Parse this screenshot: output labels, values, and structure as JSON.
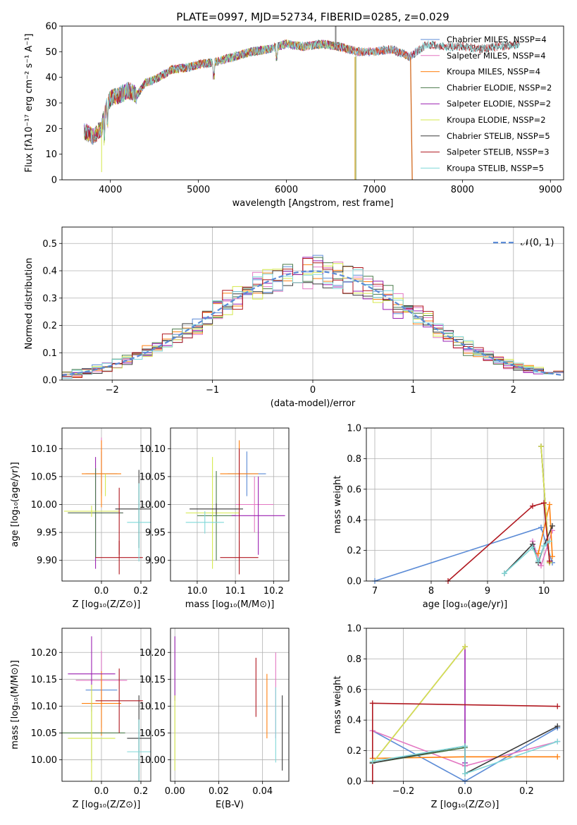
{
  "title": "PLATE=0997, MJD=52734, FIBERID=0285, z=0.029",
  "colors": {
    "chabrier_miles": "#5b8bd6",
    "salpeter_miles": "#e377c2",
    "kroupa_miles": "#ff7f0e",
    "chabrier_elodie": "#4a7a4a",
    "salpeter_elodie": "#9a1fb0",
    "kroupa_elodie": "#d4e84a",
    "chabrier_stelib": "#3a3a3a",
    "salpeter_stelib": "#b0171f",
    "kroupa_stelib": "#7fd8d8"
  },
  "chart_data": [
    {
      "id": "spectrum",
      "type": "line",
      "xlabel": "wavelength [Angstrom, rest frame]",
      "ylabel": "Flux [fλ10⁻¹⁷ erg cm⁻² s⁻¹ A⁻¹]",
      "xlim": [
        3450,
        9150
      ],
      "ylim": [
        0,
        60
      ],
      "xticks": [
        "4000",
        "5000",
        "6000",
        "7000",
        "8000",
        "9000"
      ],
      "yticks": [
        "0",
        "10",
        "20",
        "30",
        "40",
        "50",
        "60"
      ],
      "x_range_data": [
        3700,
        8650
      ],
      "legend_position": "upper right",
      "series": [
        {
          "name": "Chabrier MILES, NSSP=4",
          "color": "#5b8bd6",
          "end": 7500
        },
        {
          "name": "Salpeter MILES, NSSP=4",
          "color": "#e377c2",
          "end": 7500
        },
        {
          "name": "Kroupa MILES, NSSP=4",
          "color": "#ff7f0e",
          "end": 7400
        },
        {
          "name": "Chabrier ELODIE, NSSP=2",
          "color": "#4a7a4a",
          "end": 6750
        },
        {
          "name": "Salpeter ELODIE, NSSP=2",
          "color": "#9a1fb0",
          "end": 6750
        },
        {
          "name": "Kroupa ELODIE, NSSP=2",
          "color": "#d4e84a",
          "end": 6750
        },
        {
          "name": "Chabrier STELIB, NSSP=5",
          "color": "#3a3a3a",
          "end": 8650
        },
        {
          "name": "Salpeter STELIB, NSSP=3",
          "color": "#b0171f",
          "end": 8650
        },
        {
          "name": "Kroupa STELIB, NSSP=5",
          "color": "#7fd8d8",
          "end": 8650
        }
      ],
      "continuum": [
        [
          3700,
          19
        ],
        [
          3800,
          17
        ],
        [
          3900,
          20
        ],
        [
          3950,
          28
        ],
        [
          4000,
          32
        ],
        [
          4100,
          33
        ],
        [
          4200,
          35
        ],
        [
          4300,
          33
        ],
        [
          4400,
          38
        ],
        [
          4500,
          39
        ],
        [
          4700,
          43
        ],
        [
          4900,
          44
        ],
        [
          5000,
          45
        ],
        [
          5200,
          46
        ],
        [
          5400,
          48
        ],
        [
          5600,
          50
        ],
        [
          5800,
          51
        ],
        [
          6000,
          53
        ],
        [
          6200,
          52
        ],
        [
          6400,
          53
        ],
        [
          6600,
          52
        ],
        [
          6800,
          50
        ],
        [
          7000,
          50
        ],
        [
          7200,
          51
        ],
        [
          7400,
          48
        ],
        [
          7600,
          53
        ],
        [
          7800,
          52
        ],
        [
          8000,
          52
        ],
        [
          8200,
          51
        ],
        [
          8400,
          52
        ],
        [
          8650,
          53
        ]
      ]
    },
    {
      "id": "residual_histogram",
      "type": "bar",
      "xlabel": "(data-model)/error",
      "ylabel": "Normed distribution",
      "xlim": [
        -2.5,
        2.5
      ],
      "ylim": [
        0,
        0.56
      ],
      "xticks": [
        "−2",
        "−1",
        "0",
        "1",
        "2"
      ],
      "yticks": [
        "0.0",
        "0.1",
        "0.2",
        "0.3",
        "0.4",
        "0.5"
      ],
      "legend_label": "𝒩(0, 1)",
      "reference_curve": "normal pdf, mean 0, sigma 1, dashed",
      "bin_width": 0.1
    },
    {
      "id": "age_vs_Z",
      "type": "scatter",
      "xlabel": "Z [log₁₀(Z/Z⊙)]",
      "ylabel": "age  [log₁₀(age/yr)]",
      "xlim": [
        -0.2,
        0.25
      ],
      "ylim": [
        9.863,
        10.137
      ],
      "xticks": [
        "0.0",
        "0.2"
      ],
      "yticks": [
        "9.90",
        "9.95",
        "10.00",
        "10.05",
        "10.10"
      ],
      "points": [
        {
          "x": 0.0,
          "y": 10.055,
          "xerr": 0.08,
          "yerr": 0.04,
          "color": "#5b8bd6"
        },
        {
          "x": 0.0,
          "y": 10.07,
          "xerr": 0.0,
          "yerr": 0.05,
          "color": "#e377c2"
        },
        {
          "x": 0.0,
          "y": 10.055,
          "xerr": 0.1,
          "yerr": 0.06,
          "color": "#ff7f0e"
        },
        {
          "x": 0.02,
          "y": 10.035,
          "xerr": 0.0,
          "yerr": 0.02,
          "color": "#d4e84a"
        },
        {
          "x": -0.03,
          "y": 9.985,
          "xerr": 0.14,
          "yerr": 0.1,
          "color": "#9a1fb0"
        },
        {
          "x": -0.03,
          "y": 9.985,
          "xerr": 0.14,
          "yerr": 0.08,
          "color": "#4a7a4a"
        },
        {
          "x": -0.05,
          "y": 9.988,
          "xerr": 0.14,
          "yerr": 0.01,
          "color": "#d4e84a"
        },
        {
          "x": 0.09,
          "y": 9.905,
          "xerr": 0.12,
          "yerr": 0.03,
          "color": "#b0171f"
        },
        {
          "x": 0.09,
          "y": 9.97,
          "xerr": 0.0,
          "yerr": 0.06,
          "color": "#b0171f"
        },
        {
          "x": 0.19,
          "y": 9.992,
          "xerr": 0.12,
          "yerr": 0.07,
          "color": "#3a3a3a"
        },
        {
          "x": 0.19,
          "y": 9.968,
          "xerr": 0.06,
          "yerr": 0.07,
          "color": "#7fd8d8"
        }
      ]
    },
    {
      "id": "age_vs_mass",
      "type": "scatter",
      "xlabel": "mass [log₁₀(M/M⊙)]",
      "xlim": [
        9.93,
        10.24
      ],
      "ylim": [
        9.863,
        10.137
      ],
      "xticks": [
        "10.0",
        "10.1",
        "10.2"
      ],
      "yticks": [
        "9.90",
        "9.95",
        "10.00",
        "10.05",
        "10.10"
      ],
      "points": [
        {
          "x": 10.13,
          "y": 10.055,
          "xerr": 0.05,
          "yerr": 0.04,
          "color": "#5b8bd6"
        },
        {
          "x": 10.15,
          "y": 10.0,
          "xerr": 0.05,
          "yerr": 0.05,
          "color": "#e377c2"
        },
        {
          "x": 10.11,
          "y": 10.055,
          "xerr": 0.05,
          "yerr": 0.06,
          "color": "#ff7f0e"
        },
        {
          "x": 10.05,
          "y": 9.98,
          "xerr": 0.05,
          "yerr": 0.08,
          "color": "#4a7a4a"
        },
        {
          "x": 10.16,
          "y": 9.98,
          "xerr": 0.07,
          "yerr": 0.07,
          "color": "#9a1fb0"
        },
        {
          "x": 10.04,
          "y": 9.985,
          "xerr": 0.07,
          "yerr": 0.1,
          "color": "#d4e84a"
        },
        {
          "x": 10.05,
          "y": 9.992,
          "xerr": 0.07,
          "yerr": 0.01,
          "color": "#3a3a3a"
        },
        {
          "x": 10.11,
          "y": 9.905,
          "xerr": 0.05,
          "yerr": 0.03,
          "color": "#b0171f"
        },
        {
          "x": 10.11,
          "y": 10.0,
          "xerr": 0.0,
          "yerr": 0.1,
          "color": "#b0171f"
        },
        {
          "x": 10.02,
          "y": 9.968,
          "xerr": 0.05,
          "yerr": 0.02,
          "color": "#7fd8d8"
        }
      ]
    },
    {
      "id": "weight_vs_age",
      "type": "line",
      "xlabel": "age  [log₁₀(age/yr)]",
      "ylabel": "mass weight",
      "xlim": [
        6.85,
        10.35
      ],
      "ylim": [
        0,
        1
      ],
      "xticks": [
        "7",
        "8",
        "9",
        "10"
      ],
      "yticks": [
        "0.0",
        "0.2",
        "0.4",
        "0.6",
        "0.8",
        "1.0"
      ],
      "series": [
        {
          "color": "#5b8bd6",
          "x": [
            7.0,
            9.95,
            10.15
          ],
          "y": [
            0.0,
            0.35,
            0.12
          ]
        },
        {
          "color": "#e377c2",
          "x": [
            9.8,
            9.95,
            10.15
          ],
          "y": [
            0.26,
            0.1,
            0.33
          ]
        },
        {
          "color": "#ff7f0e",
          "x": [
            9.9,
            10.1,
            10.15
          ],
          "y": [
            0.18,
            0.5,
            0.16
          ]
        },
        {
          "color": "#4a7a4a",
          "x": [
            9.95,
            10.1
          ],
          "y": [
            0.88,
            0.12
          ]
        },
        {
          "color": "#9a1fb0",
          "x": [
            9.95,
            10.1
          ],
          "y": [
            0.88,
            0.12
          ]
        },
        {
          "color": "#d4e84a",
          "x": [
            9.95,
            10.1
          ],
          "y": [
            0.88,
            0.12
          ]
        },
        {
          "color": "#3a3a3a",
          "x": [
            9.3,
            9.8,
            9.9,
            10.0,
            10.15
          ],
          "y": [
            0.05,
            0.24,
            0.12,
            0.23,
            0.36
          ]
        },
        {
          "color": "#b0171f",
          "x": [
            8.3,
            9.8,
            10.0,
            10.1
          ],
          "y": [
            0.0,
            0.49,
            0.51,
            0.13
          ]
        },
        {
          "color": "#7fd8d8",
          "x": [
            9.3,
            9.8,
            9.9,
            10.0,
            10.1
          ],
          "y": [
            0.05,
            0.22,
            0.13,
            0.23,
            0.26
          ]
        }
      ]
    },
    {
      "id": "mass_vs_Z",
      "type": "scatter",
      "xlabel": "Z [log₁₀(Z/Z⊙)]",
      "ylabel": "mass [log₁₀(M/M⊙)]",
      "xlim": [
        -0.2,
        0.25
      ],
      "ylim": [
        9.96,
        10.245
      ],
      "xticks": [
        "0.0",
        "0.2"
      ],
      "yticks": [
        "10.00",
        "10.05",
        "10.10",
        "10.15",
        "10.20"
      ],
      "points": [
        {
          "x": 0.0,
          "y": 10.13,
          "xerr": 0.08,
          "yerr": 0.07,
          "color": "#5b8bd6"
        },
        {
          "x": 0.0,
          "y": 10.148,
          "xerr": 0.13,
          "yerr": 0.055,
          "color": "#e377c2"
        },
        {
          "x": 0.0,
          "y": 10.105,
          "xerr": 0.1,
          "yerr": 0.06,
          "color": "#ff7f0e"
        },
        {
          "x": -0.05,
          "y": 10.05,
          "xerr": 0.17,
          "yerr": 0.055,
          "color": "#4a7a4a"
        },
        {
          "x": -0.05,
          "y": 10.16,
          "xerr": 0.12,
          "yerr": 0.07,
          "color": "#9a1fb0"
        },
        {
          "x": -0.05,
          "y": 10.04,
          "xerr": 0.12,
          "yerr": 0.1,
          "color": "#d4e84a"
        },
        {
          "x": 0.19,
          "y": 10.04,
          "xerr": 0.06,
          "yerr": 0.08,
          "color": "#3a3a3a"
        },
        {
          "x": 0.09,
          "y": 10.11,
          "xerr": 0.12,
          "yerr": 0.06,
          "color": "#b0171f"
        },
        {
          "x": 0.19,
          "y": 10.015,
          "xerr": 0.06,
          "yerr": 0.06,
          "color": "#7fd8d8"
        }
      ]
    },
    {
      "id": "mass_vs_EBV",
      "type": "scatter",
      "xlabel": "E(B-V)",
      "xlim": [
        -0.002,
        0.052
      ],
      "ylim": [
        9.96,
        10.245
      ],
      "xticks": [
        "0.00",
        "0.02",
        "0.04"
      ],
      "yticks": [
        "10.00",
        "10.05",
        "10.10",
        "10.15",
        "10.20"
      ],
      "points": [
        {
          "x": 0.0,
          "y": 10.17,
          "yerr": 0.06,
          "color": "#9a1fb0"
        },
        {
          "x": 0.0,
          "y": 10.05,
          "yerr": 0.07,
          "color": "#d4e84a"
        },
        {
          "x": 0.037,
          "y": 10.135,
          "yerr": 0.055,
          "color": "#b0171f"
        },
        {
          "x": 0.042,
          "y": 10.1,
          "yerr": 0.06,
          "color": "#ff7f0e"
        },
        {
          "x": 0.046,
          "y": 10.12,
          "yerr": 0.08,
          "color": "#e377c2"
        },
        {
          "x": 0.046,
          "y": 10.065,
          "yerr": 0.07,
          "color": "#7fd8d8"
        },
        {
          "x": 0.049,
          "y": 10.05,
          "yerr": 0.07,
          "color": "#3a3a3a"
        }
      ]
    },
    {
      "id": "weight_vs_Z",
      "type": "line",
      "xlabel": "Z [log₁₀(Z/Z⊙)]",
      "ylabel": "mass weight",
      "xlim": [
        -0.32,
        0.32
      ],
      "ylim": [
        0,
        1
      ],
      "xticks": [
        "−0.2",
        "0.0",
        "0.2"
      ],
      "yticks": [
        "0.0",
        "0.2",
        "0.4",
        "0.6",
        "0.8",
        "1.0"
      ],
      "series": [
        {
          "color": "#5b8bd6",
          "x": [
            -0.3,
            0.0,
            0.3
          ],
          "y": [
            0.33,
            0.0,
            0.35
          ]
        },
        {
          "color": "#e377c2",
          "x": [
            -0.3,
            0.0,
            0.3
          ],
          "y": [
            0.33,
            0.1,
            0.26
          ]
        },
        {
          "color": "#ff7f0e",
          "x": [
            -0.3,
            0.0,
            0.3
          ],
          "y": [
            0.15,
            0.16,
            0.16
          ]
        },
        {
          "color": "#4a7a4a",
          "x": [
            -0.3,
            0.0
          ],
          "y": [
            0.12,
            0.22
          ]
        },
        {
          "color": "#9a1fb0",
          "x": [
            -0.3,
            0.0,
            0.0
          ],
          "y": [
            0.12,
            0.88,
            0.12
          ]
        },
        {
          "color": "#d4e84a",
          "x": [
            -0.3,
            0.0
          ],
          "y": [
            0.12,
            0.88
          ]
        },
        {
          "color": "#3a3a3a",
          "x": [
            -0.3,
            0.0,
            0.0,
            0.3
          ],
          "y": [
            0.12,
            0.23,
            0.05,
            0.36
          ]
        },
        {
          "color": "#b0171f",
          "x": [
            -0.3,
            -0.3,
            0.3
          ],
          "y": [
            0.0,
            0.51,
            0.49
          ]
        },
        {
          "color": "#7fd8d8",
          "x": [
            -0.3,
            0.0,
            0.0,
            0.3
          ],
          "y": [
            0.13,
            0.23,
            0.05,
            0.26
          ]
        }
      ]
    }
  ]
}
